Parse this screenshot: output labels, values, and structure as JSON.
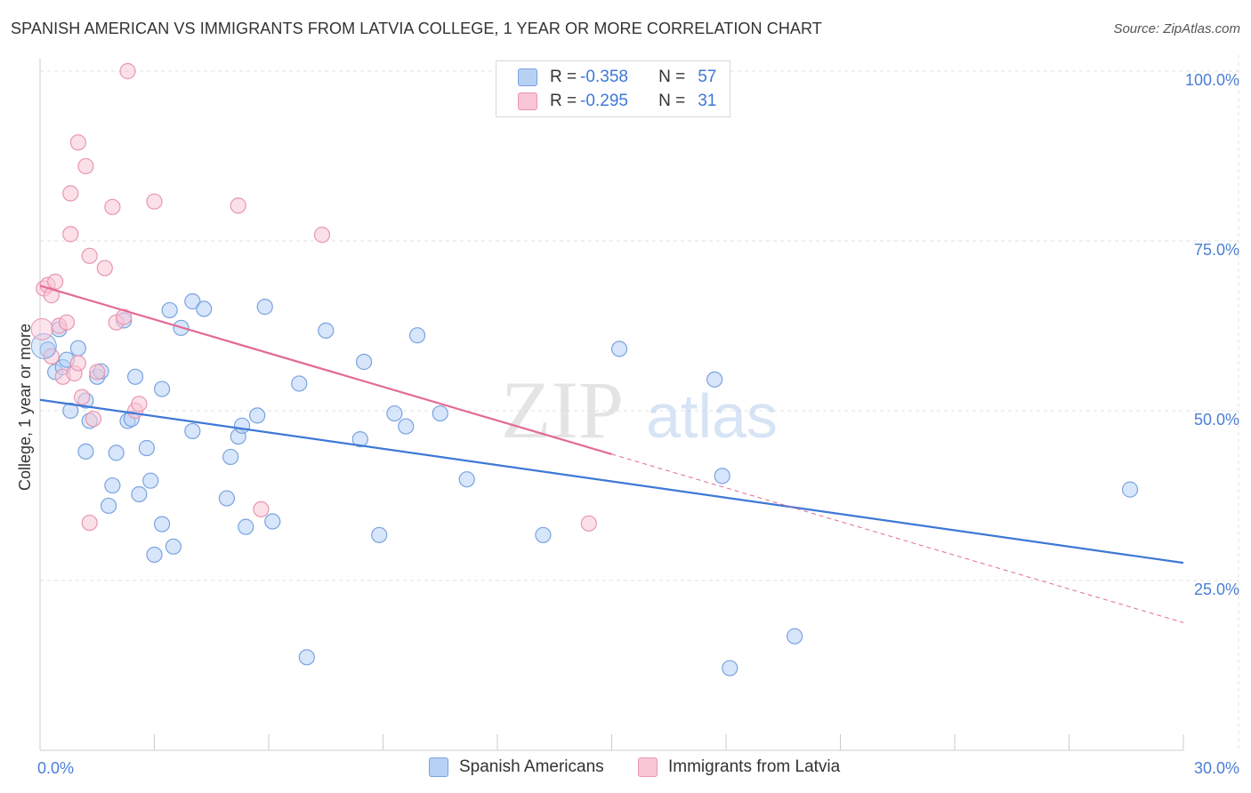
{
  "title": "SPANISH AMERICAN VS IMMIGRANTS FROM LATVIA COLLEGE, 1 YEAR OR MORE CORRELATION CHART",
  "source": "Source: ZipAtlas.com",
  "watermark": {
    "zip": "ZIP",
    "atlas": "atlas"
  },
  "legend": {
    "rows": [
      {
        "r_label": "R =",
        "r_value": "-0.358",
        "n_label": "N =",
        "n_value": "57",
        "fill": "#b7d1f5",
        "stroke": "#7aa3e0"
      },
      {
        "r_label": "R =",
        "r_value": "-0.295",
        "n_label": "N =",
        "n_value": "31",
        "fill": "#f9c6d6",
        "stroke": "#e896b0"
      }
    ]
  },
  "bottom_legend": [
    {
      "label": "Spanish Americans",
      "fill": "#b7d1f5",
      "stroke": "#7aa3e0"
    },
    {
      "label": "Immigrants from Latvia",
      "fill": "#f9c6d6",
      "stroke": "#e896b0"
    }
  ],
  "chart_data": {
    "type": "scatter",
    "title": "SPANISH AMERICAN VS IMMIGRANTS FROM LATVIA COLLEGE, 1 YEAR OR MORE CORRELATION CHART",
    "xlabel": "",
    "ylabel": "College, 1 year or more",
    "xlim": [
      0,
      30
    ],
    "ylim": [
      0,
      100
    ],
    "x_tick_labels": [
      "0.0%",
      "30.0%"
    ],
    "y_ticks": [
      25,
      50,
      75,
      100
    ],
    "y_tick_labels": [
      "25.0%",
      "50.0%",
      "75.0%",
      "100.0%"
    ],
    "grid": true,
    "series": [
      {
        "name": "Spanish Americans",
        "color": "#3d78d6",
        "fill": "#b7d1f5",
        "stroke": "#7aa3e0",
        "trend": {
          "x0": 0,
          "y0": 51.6,
          "x1": 30,
          "y1": 27.6,
          "dashed_from": null
        },
        "points": [
          [
            0.2,
            59.0
          ],
          [
            0.4,
            55.7
          ],
          [
            0.5,
            62.0
          ],
          [
            0.6,
            56.4
          ],
          [
            0.7,
            57.5
          ],
          [
            0.8,
            50.0
          ],
          [
            1.0,
            59.2
          ],
          [
            1.2,
            44.0
          ],
          [
            1.3,
            48.5
          ],
          [
            1.5,
            55.0
          ],
          [
            1.6,
            55.8
          ],
          [
            1.8,
            36.0
          ],
          [
            1.9,
            39.0
          ],
          [
            2.0,
            43.8
          ],
          [
            2.2,
            63.3
          ],
          [
            2.3,
            48.5
          ],
          [
            2.4,
            48.8
          ],
          [
            2.6,
            37.7
          ],
          [
            2.8,
            44.5
          ],
          [
            2.9,
            39.7
          ],
          [
            3.0,
            28.8
          ],
          [
            3.2,
            33.3
          ],
          [
            3.2,
            53.2
          ],
          [
            3.4,
            64.8
          ],
          [
            3.5,
            30.0
          ],
          [
            3.7,
            62.2
          ],
          [
            4.0,
            66.1
          ],
          [
            4.0,
            47.0
          ],
          [
            4.3,
            65.0
          ],
          [
            4.9,
            37.1
          ],
          [
            5.0,
            43.2
          ],
          [
            5.2,
            46.2
          ],
          [
            5.3,
            47.8
          ],
          [
            5.4,
            32.9
          ],
          [
            5.7,
            49.3
          ],
          [
            5.9,
            65.3
          ],
          [
            6.1,
            33.7
          ],
          [
            6.8,
            54.0
          ],
          [
            7.0,
            13.7
          ],
          [
            7.5,
            61.8
          ],
          [
            8.4,
            45.8
          ],
          [
            8.5,
            57.2
          ],
          [
            8.9,
            31.7
          ],
          [
            9.3,
            49.6
          ],
          [
            9.6,
            47.7
          ],
          [
            9.9,
            61.1
          ],
          [
            10.5,
            49.6
          ],
          [
            11.2,
            39.9
          ],
          [
            13.2,
            31.7
          ],
          [
            15.2,
            59.1
          ],
          [
            17.7,
            54.6
          ],
          [
            17.9,
            40.4
          ],
          [
            18.1,
            12.1
          ],
          [
            19.8,
            16.8
          ],
          [
            28.6,
            38.4
          ],
          [
            1.2,
            51.5
          ],
          [
            2.5,
            55.0
          ]
        ]
      },
      {
        "name": "Immigrants from Latvia",
        "color": "#e36a93",
        "fill": "#f9c6d6",
        "stroke": "#e896b0",
        "trend": {
          "x0": 0,
          "y0": 68.4,
          "x1": 15.0,
          "y1": 43.6,
          "x_end": 30,
          "y_end": 18.8
        },
        "points": [
          [
            0.1,
            68.0
          ],
          [
            0.2,
            68.5
          ],
          [
            0.3,
            67.0
          ],
          [
            0.4,
            69.0
          ],
          [
            0.5,
            62.5
          ],
          [
            0.6,
            55.0
          ],
          [
            0.7,
            63.0
          ],
          [
            0.8,
            82.0
          ],
          [
            0.8,
            76.0
          ],
          [
            0.9,
            55.5
          ],
          [
            1.0,
            57.0
          ],
          [
            1.0,
            89.5
          ],
          [
            1.1,
            52.0
          ],
          [
            1.2,
            86.0
          ],
          [
            1.3,
            33.5
          ],
          [
            1.3,
            72.8
          ],
          [
            1.4,
            48.8
          ],
          [
            1.7,
            71.0
          ],
          [
            1.9,
            80.0
          ],
          [
            2.0,
            63.0
          ],
          [
            2.2,
            63.8
          ],
          [
            2.3,
            100.0
          ],
          [
            2.5,
            50.0
          ],
          [
            2.6,
            51.0
          ],
          [
            3.0,
            80.8
          ],
          [
            5.2,
            80.2
          ],
          [
            5.8,
            35.5
          ],
          [
            7.4,
            75.9
          ],
          [
            14.4,
            33.4
          ],
          [
            0.3,
            58.0
          ],
          [
            1.5,
            55.7
          ]
        ]
      }
    ]
  }
}
